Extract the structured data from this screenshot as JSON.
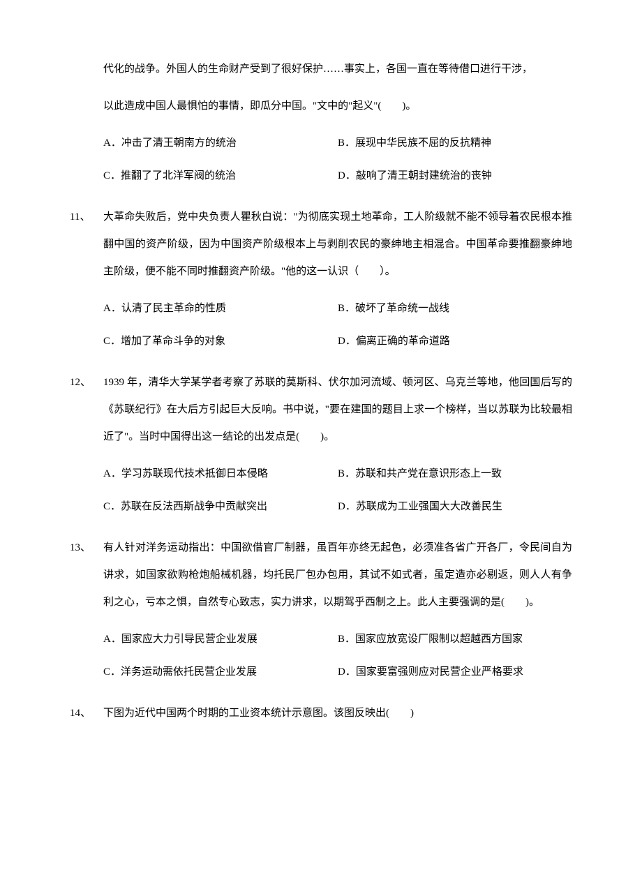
{
  "background_color": "#ffffff",
  "text_color": "#000000",
  "font_family": "SimSun",
  "base_fontsize": 15,
  "line_height": 2.6,
  "q10_continuation": {
    "line1": "代化的战争。外国人的生命财产受到了很好保护……事实上，各国一直在等待借口进行干涉，",
    "line2": "以此造成中国人最惧怕的事情，即瓜分中国。\"文中的\"起义\"(　　)。",
    "options": {
      "A": "A．冲击了清王朝南方的统治",
      "B": "B．展现中华民族不屈的反抗精神",
      "C": "C．推翻了了北洋军阀的统治",
      "D": "D．敲响了清王朝封建统治的丧钟"
    }
  },
  "q11": {
    "num": "11、",
    "stem": "大革命失败后，党中央负责人瞿秋白说：\"为彻底实现土地革命，工人阶级就不能不领导着农民根本推翻中国的资产阶级，因为中国资产阶级根本上与剥削农民的豪绅地主相混合。中国革命要推翻豪绅地主阶级，便不能不同时推翻资产阶级。\"他的这一认识（　　）。",
    "options": {
      "A": "A．认清了民主革命的性质",
      "B": "B．破坏了革命统一战线",
      "C": "C．增加了革命斗争的对象",
      "D": "D．偏离正确的革命道路"
    }
  },
  "q12": {
    "num": "12、",
    "stem": "1939 年，清华大学某学者考察了苏联的莫斯科、伏尔加河流域、顿河区、乌克兰等地，他回国后写的《苏联纪行》在大后方引起巨大反响。书中说，\"要在建国的题目上求一个榜样，当以苏联为比较最相近了\"。当时中国得出这一结论的出发点是(　　)。",
    "options": {
      "A": "A．学习苏联现代技术抵御日本侵略",
      "B": "B．苏联和共产党在意识形态上一致",
      "C": "C．苏联在反法西斯战争中贡献突出",
      "D": "D．苏联成为工业强国大大改善民生"
    }
  },
  "q13": {
    "num": "13、",
    "stem": "有人针对洋务运动指出：中国欲借官厂制器，虽百年亦终无起色，必须准各省广开各厂，令民间自为讲求，如国家欲购枪炮船械机器，均托民厂包办包用，其试不如式者，虽定造亦必剔返，则人人有争利之心，亏本之惧，自然专心致志，实力讲求，以期驾乎西制之上。此人主要强调的是(　　)。",
    "options": {
      "A": "A．国家应大力引导民营企业发展",
      "B": "B．国家应放宽设厂限制以超越西方国家",
      "C": "C．洋务运动需依托民营企业发展",
      "D": "D．国家要富强则应对民营企业严格要求"
    }
  },
  "q14": {
    "num": "14、",
    "stem": "下图为近代中国两个时期的工业资本统计示意图。该图反映出(　　)"
  }
}
